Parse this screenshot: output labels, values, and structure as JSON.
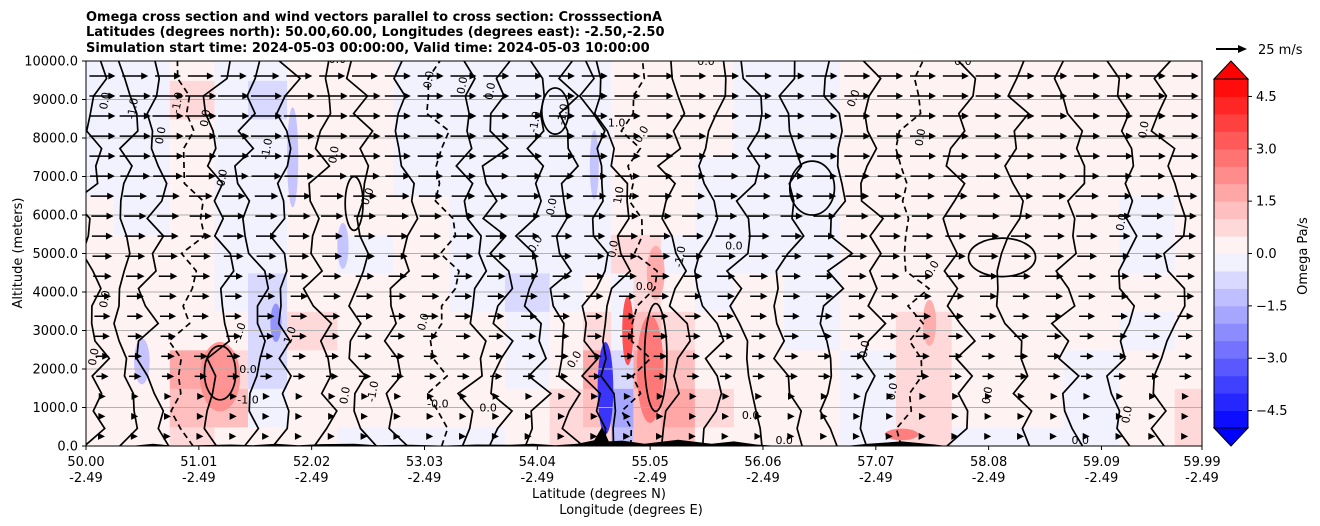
{
  "chart_data": {
    "type": "heatmap",
    "title_lines": [
      "Omega cross section and wind vectors parallel to cross section: CrosssectionA",
      "Latitudes (degrees north): 50.00,60.00, Longitudes (degrees east): -2.50,-2.50",
      "Simulation start time: 2024-05-03 00:00:00, Valid time: 2024-05-03 10:00:00"
    ],
    "xlabel_lines": [
      "Latitude (degrees N)",
      "Longitude (degrees E)"
    ],
    "ylabel": "Altitude (meters)",
    "xlim": [
      50.0,
      59.99
    ],
    "ylim": [
      0,
      10000
    ],
    "x_ticks": [
      {
        "lat": "50.00",
        "lon": "-2.49",
        "value": 50.0
      },
      {
        "lat": "51.01",
        "lon": "-2.49",
        "value": 51.01
      },
      {
        "lat": "52.02",
        "lon": "-2.49",
        "value": 52.02
      },
      {
        "lat": "53.03",
        "lon": "-2.49",
        "value": 53.03
      },
      {
        "lat": "54.04",
        "lon": "-2.49",
        "value": 54.04
      },
      {
        "lat": "55.05",
        "lon": "-2.49",
        "value": 55.05
      },
      {
        "lat": "56.06",
        "lon": "-2.49",
        "value": 56.06
      },
      {
        "lat": "57.07",
        "lon": "-2.49",
        "value": 57.07
      },
      {
        "lat": "58.08",
        "lon": "-2.49",
        "value": 58.08
      },
      {
        "lat": "59.09",
        "lon": "-2.49",
        "value": 59.09
      },
      {
        "lat": "59.99",
        "lon": "-2.49",
        "value": 59.99
      }
    ],
    "y_ticks": [
      {
        "label": "0.0",
        "value": 0
      },
      {
        "label": "1000.0",
        "value": 1000
      },
      {
        "label": "2000.0",
        "value": 2000
      },
      {
        "label": "3000.0",
        "value": 3000
      },
      {
        "label": "4000.0",
        "value": 4000
      },
      {
        "label": "5000.0",
        "value": 5000
      },
      {
        "label": "6000.0",
        "value": 6000
      },
      {
        "label": "7000.0",
        "value": 7000
      },
      {
        "label": "8000.0",
        "value": 8000
      },
      {
        "label": "9000.0",
        "value": 9000
      },
      {
        "label": "10000.0",
        "value": 10000
      }
    ],
    "grid": "horizontal",
    "colorbar": {
      "label": "Omega Pa/s",
      "min": -5.0,
      "max": 5.0,
      "levels": 20,
      "extend": "both",
      "ticks": [
        {
          "label": "4.5",
          "value": 4.5
        },
        {
          "label": "3.0",
          "value": 3.0
        },
        {
          "label": "1.5",
          "value": 1.5
        },
        {
          "label": "0.0",
          "value": 0.0
        },
        {
          "label": "−1.5",
          "value": -1.5
        },
        {
          "label": "−3.0",
          "value": -3.0
        },
        {
          "label": "−4.5",
          "value": -4.5
        }
      ],
      "cmap": "bwr"
    },
    "quiver_key": {
      "label": "25 m/s",
      "speed": 25
    },
    "wind_description": "eastward vectors, approx 20-30 m/s above 5000 m, weaker near surface",
    "contour_levels_shown": [
      "0.0",
      "-1.0",
      "1.0"
    ],
    "contour_labels": [
      {
        "text": "0.0",
        "x": 50.2,
        "y": 8950,
        "rot": -80
      },
      {
        "text": "-1.0",
        "x": 50.45,
        "y": 8750,
        "rot": -80
      },
      {
        "text": "0.0",
        "x": 50.7,
        "y": 8050,
        "rot": -80
      },
      {
        "text": "-1.0",
        "x": 50.85,
        "y": 8900,
        "rot": -80
      },
      {
        "text": "0.0",
        "x": 51.1,
        "y": 8500,
        "rot": -80
      },
      {
        "text": "-1.0",
        "x": 51.65,
        "y": 7700,
        "rot": -80
      },
      {
        "text": "0.0",
        "x": 52.25,
        "y": 7550,
        "rot": -80
      },
      {
        "text": "0.0",
        "x": 52.55,
        "y": 6450,
        "rot": -70
      },
      {
        "text": "0.0",
        "x": 51.25,
        "y": 6950,
        "rot": -80
      },
      {
        "text": "0.0",
        "x": 50.2,
        "y": 3800,
        "rot": -80
      },
      {
        "text": "0.0",
        "x": 50.1,
        "y": 2300,
        "rot": -80
      },
      {
        "text": "-1.0",
        "x": 51.4,
        "y": 2900,
        "rot": -70
      },
      {
        "text": "-1.0",
        "x": 51.85,
        "y": 2800,
        "rot": -70
      },
      {
        "text": "0.0",
        "x": 51.45,
        "y": 1900,
        "rot": 0
      },
      {
        "text": "-1.0",
        "x": 51.45,
        "y": 1100,
        "rot": 0
      },
      {
        "text": "0.0",
        "x": 52.35,
        "y": 1300,
        "rot": -80
      },
      {
        "text": "-1.0",
        "x": 52.6,
        "y": 1400,
        "rot": -80
      },
      {
        "text": "-0.0",
        "x": 53.15,
        "y": 1000,
        "rot": 0
      },
      {
        "text": "0.0",
        "x": 53.05,
        "y": 3200,
        "rot": -75
      },
      {
        "text": "0.0",
        "x": 53.6,
        "y": 900,
        "rot": 0
      },
      {
        "text": "0.0",
        "x": 53.1,
        "y": 9500,
        "rot": -80
      },
      {
        "text": "0.0",
        "x": 53.4,
        "y": 9350,
        "rot": -80
      },
      {
        "text": "0.0",
        "x": 53.65,
        "y": 9200,
        "rot": -80
      },
      {
        "text": "-1.0",
        "x": 54.05,
        "y": 8400,
        "rot": -80
      },
      {
        "text": "-1.0",
        "x": 54.3,
        "y": 8600,
        "rot": -80
      },
      {
        "text": "1.0",
        "x": 54.75,
        "y": 8300,
        "rot": 0
      },
      {
        "text": "0.0",
        "x": 54.2,
        "y": 6200,
        "rot": -80
      },
      {
        "text": "0.0",
        "x": 54.05,
        "y": 5200,
        "rot": -60
      },
      {
        "text": "0.0",
        "x": 55.0,
        "y": 8050,
        "rot": -60
      },
      {
        "text": "0.0",
        "x": 54.4,
        "y": 2200,
        "rot": -60
      },
      {
        "text": "1.0",
        "x": 54.8,
        "y": 6500,
        "rot": -80
      },
      {
        "text": "0.0",
        "x": 55.0,
        "y": 4050,
        "rot": 0
      },
      {
        "text": "0.0",
        "x": 55.8,
        "y": 5100,
        "rot": 0
      },
      {
        "text": "0.0",
        "x": 55.95,
        "y": 700,
        "rot": 0
      },
      {
        "text": "0.0",
        "x": 56.9,
        "y": 9000,
        "rot": -70
      },
      {
        "text": "0.0",
        "x": 57.5,
        "y": 8000,
        "rot": -80
      },
      {
        "text": "0.0",
        "x": 57.6,
        "y": 4550,
        "rot": -60
      },
      {
        "text": "0.0",
        "x": 57.0,
        "y": 2500,
        "rot": -80
      },
      {
        "text": "0.0",
        "x": 57.25,
        "y": 1400,
        "rot": -80
      },
      {
        "text": "0.0",
        "x": 58.1,
        "y": 1300,
        "rot": -80
      },
      {
        "text": "0.0",
        "x": 59.5,
        "y": 8200,
        "rot": -80
      },
      {
        "text": "0.0",
        "x": 59.3,
        "y": 5800,
        "rot": -80
      },
      {
        "text": "0.0",
        "x": 59.35,
        "y": 800,
        "rot": -80
      },
      {
        "text": "0.0",
        "x": 58.9,
        "y": 50,
        "rot": 0
      },
      {
        "text": "0.0",
        "x": 57.85,
        "y": 9900,
        "rot": 0
      },
      {
        "text": "0.0",
        "x": 55.55,
        "y": 9900,
        "rot": 0
      },
      {
        "text": "0.0",
        "x": 52.25,
        "y": 9950,
        "rot": 0
      },
      {
        "text": "0.0",
        "x": 54.75,
        "y": 5100,
        "rot": -80
      },
      {
        "text": "-1.0",
        "x": 55.35,
        "y": 4900,
        "rot": -80
      },
      {
        "text": "0.0",
        "x": 56.25,
        "y": 50,
        "rot": 0
      }
    ],
    "cells": {
      "note": "approximate omega field (Pa/s) on coarse grid, lat x altitude",
      "lat": [
        50.0,
        50.5,
        51.0,
        51.3,
        51.6,
        52.0,
        52.5,
        53.0,
        53.5,
        54.0,
        54.3,
        54.6,
        54.8,
        55.0,
        55.3,
        55.6,
        56.0,
        56.5,
        57.0,
        57.5,
        58.0,
        58.5,
        59.0,
        59.5,
        59.99
      ],
      "alt": [
        0,
        1000,
        2000,
        3000,
        4000,
        5000,
        6000,
        7000,
        8000,
        9000,
        10000
      ],
      "omega": [
        [
          0.2,
          0.3,
          0.5,
          0.3,
          0.1,
          0.3,
          -0.2,
          -0.1,
          -0.2,
          0.2,
          0.8,
          0.5,
          -1.2,
          1.0,
          1.2,
          0.4,
          0.2,
          0.0,
          -0.3,
          0.6,
          -0.2,
          -0.2,
          -0.1,
          0.4,
          0.5
        ],
        [
          0.3,
          0.4,
          1.4,
          1.0,
          -0.4,
          0.4,
          0.3,
          0.2,
          0.2,
          0.1,
          0.9,
          1.3,
          -1.8,
          1.2,
          1.8,
          0.5,
          0.2,
          0.1,
          -0.3,
          0.8,
          0.2,
          0.1,
          -0.1,
          0.3,
          0.8
        ],
        [
          0.2,
          0.3,
          1.6,
          0.8,
          -0.8,
          0.2,
          0.2,
          0.2,
          0.1,
          -0.2,
          0.4,
          1.5,
          -0.8,
          1.6,
          1.4,
          0.3,
          0.3,
          0.0,
          -0.2,
          0.5,
          0.2,
          0.1,
          -0.2,
          0.1,
          0.3
        ],
        [
          0.2,
          0.2,
          0.3,
          0.3,
          -1.0,
          0.5,
          0.2,
          0.3,
          0.1,
          -0.3,
          0.1,
          0.6,
          -0.4,
          1.0,
          0.6,
          0.1,
          0.2,
          -0.1,
          0.2,
          0.7,
          0.3,
          0.2,
          0.0,
          -0.1,
          0.2
        ],
        [
          0.2,
          0.2,
          0.1,
          -0.3,
          -0.6,
          0.1,
          0.1,
          0.2,
          -0.2,
          -0.6,
          -0.2,
          0.2,
          -0.2,
          0.8,
          0.2,
          -0.1,
          0.1,
          -0.2,
          0.2,
          0.2,
          0.2,
          0.2,
          0.1,
          0.0,
          0.1
        ],
        [
          0.1,
          0.1,
          0.1,
          -0.2,
          -0.4,
          0.0,
          -0.1,
          0.1,
          -0.3,
          -0.3,
          -0.4,
          -0.5,
          0.5,
          0.5,
          -0.2,
          -0.1,
          -0.1,
          -0.2,
          0.1,
          0.1,
          0.2,
          0.2,
          0.1,
          -0.1,
          0.1
        ],
        [
          0.1,
          -0.1,
          0.1,
          -0.1,
          -0.5,
          0.1,
          0.1,
          0.0,
          -0.2,
          -0.2,
          -0.2,
          -0.3,
          0.4,
          0.3,
          0.0,
          -0.2,
          -0.1,
          -0.2,
          0.1,
          0.1,
          0.2,
          0.1,
          0.1,
          -0.2,
          0.1
        ],
        [
          -0.3,
          -0.4,
          0.1,
          -0.2,
          -0.4,
          0.2,
          0.1,
          -0.1,
          -0.2,
          -0.3,
          -0.2,
          -0.4,
          0.3,
          0.2,
          0.1,
          -0.2,
          -0.1,
          -0.1,
          0.2,
          0.2,
          0.2,
          0.2,
          0.2,
          0.0,
          0.2
        ],
        [
          -0.5,
          -0.3,
          0.4,
          -0.3,
          -0.4,
          0.3,
          0.1,
          -0.1,
          -0.1,
          -0.2,
          -0.3,
          -0.5,
          0.4,
          0.1,
          0.2,
          0.1,
          -0.1,
          -0.1,
          0.2,
          0.3,
          0.1,
          0.2,
          0.1,
          0.1,
          0.2
        ],
        [
          -0.3,
          -0.5,
          0.6,
          -0.4,
          -0.6,
          0.3,
          0.2,
          -0.2,
          -0.3,
          -0.4,
          -0.3,
          -0.5,
          0.2,
          0.2,
          0.3,
          0.1,
          -0.1,
          -0.2,
          0.3,
          0.3,
          0.1,
          0.2,
          0.1,
          0.2,
          0.2
        ],
        [
          -0.2,
          -0.2,
          0.3,
          -0.2,
          -0.2,
          0.1,
          0.1,
          -0.1,
          -0.2,
          -0.1,
          -0.1,
          -0.2,
          0.1,
          0.1,
          0.2,
          0.1,
          -0.1,
          -0.1,
          0.2,
          0.2,
          0.1,
          0.1,
          0.1,
          0.1,
          0.1
        ]
      ]
    }
  }
}
